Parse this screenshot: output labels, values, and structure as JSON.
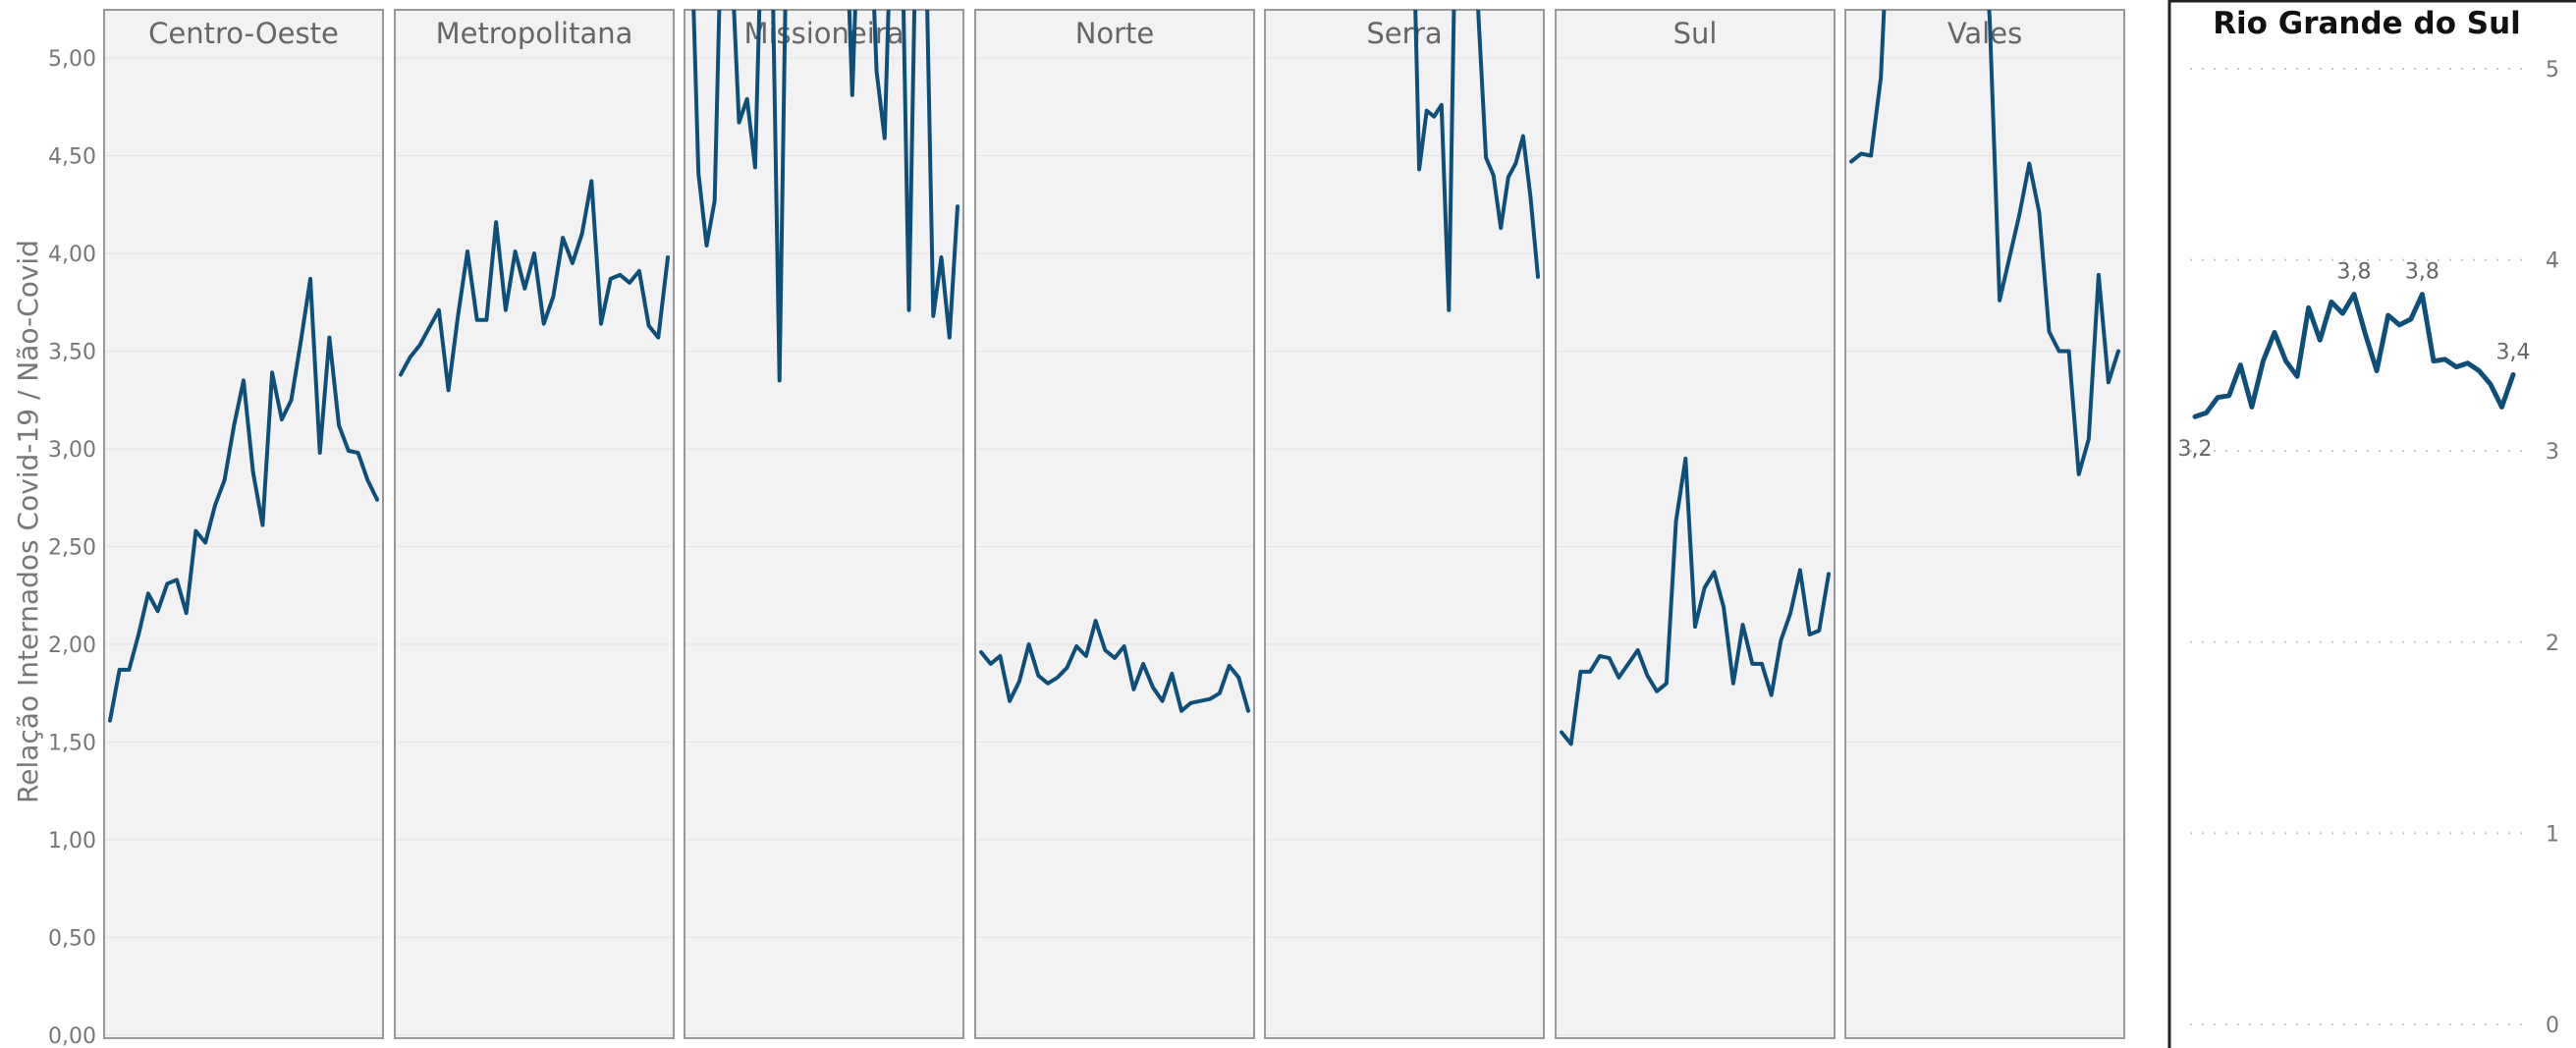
{
  "colors": {
    "line": "#0e4f79",
    "panel_bg": "#f2f2f2",
    "panel_border": "#999999",
    "grid": "#e3e3e3"
  },
  "chart_data": [
    {
      "type": "line",
      "title": "",
      "xlabel": "",
      "ylabel": "Relação Internados Covid-19 / Não-Covid",
      "ylim": [
        0,
        5
      ],
      "y_ticks": [
        "0,00",
        "0,50",
        "1,00",
        "1,50",
        "2,00",
        "2,50",
        "3,00",
        "3,50",
        "4,00",
        "4,50",
        "5,00"
      ],
      "facets": [
        {
          "name": "Centro-Oeste",
          "values": [
            1.61,
            1.87,
            1.87,
            2.05,
            2.26,
            2.17,
            2.31,
            2.33,
            2.16,
            2.58,
            2.52,
            2.71,
            2.84,
            3.12,
            3.35,
            2.88,
            2.61,
            3.39,
            3.15,
            3.25,
            3.55,
            3.87,
            2.98,
            3.57,
            3.12,
            2.99,
            2.98,
            2.84,
            2.74
          ]
        },
        {
          "name": "Metropolitana",
          "values": [
            3.38,
            3.47,
            3.53,
            3.62,
            3.71,
            3.3,
            3.68,
            4.01,
            3.66,
            3.66,
            4.16,
            3.71,
            4.01,
            3.82,
            4.0,
            3.64,
            3.78,
            4.08,
            3.95,
            4.1,
            4.37,
            3.64,
            3.87,
            3.89,
            3.85,
            3.91,
            3.63,
            3.57,
            3.98
          ]
        },
        {
          "name": "Missioneira",
          "values": [
            5.8,
            4.41,
            4.04,
            4.27,
            6.0,
            5.6,
            4.67,
            4.79,
            4.44,
            6.0,
            5.8,
            3.35,
            6.0,
            6.0,
            6.0,
            6.0,
            6.0,
            6.0,
            6.0,
            6.0,
            4.81,
            6.0,
            6.0,
            4.93,
            4.59,
            6.0,
            6.0,
            3.71,
            6.0,
            5.8,
            3.68,
            3.98,
            3.57,
            4.24
          ]
        },
        {
          "name": "Norte",
          "values": [
            1.96,
            1.9,
            1.94,
            1.71,
            1.81,
            2.0,
            1.84,
            1.8,
            1.83,
            1.88,
            1.99,
            1.94,
            2.12,
            1.97,
            1.93,
            1.99,
            1.77,
            1.9,
            1.78,
            1.71,
            1.85,
            1.66,
            1.7,
            1.71,
            1.72,
            1.75,
            1.89,
            1.83,
            1.66
          ]
        },
        {
          "name": "Serra",
          "values": [
            null,
            null,
            null,
            null,
            null,
            null,
            null,
            null,
            null,
            null,
            null,
            null,
            null,
            null,
            null,
            null,
            null,
            null,
            null,
            6.0,
            4.43,
            4.73,
            4.7,
            4.76,
            3.71,
            6.0,
            6.0,
            6.0,
            5.2,
            4.49,
            4.4,
            4.13,
            4.39,
            4.46,
            4.6,
            4.29,
            3.88
          ]
        },
        {
          "name": "Sul",
          "values": [
            1.55,
            1.49,
            1.86,
            1.86,
            1.94,
            1.93,
            1.83,
            1.9,
            1.97,
            1.84,
            1.76,
            1.8,
            2.63,
            2.95,
            2.09,
            2.29,
            2.37,
            2.19,
            1.8,
            2.1,
            1.9,
            1.9,
            1.74,
            2.02,
            2.16,
            2.38,
            2.05,
            2.07,
            2.36
          ]
        },
        {
          "name": "Vales",
          "values": [
            4.47,
            4.51,
            4.5,
            4.9,
            6.0,
            6.0,
            6.0,
            6.0,
            6.0,
            6.0,
            6.0,
            6.0,
            6.0,
            6.0,
            5.2,
            3.76,
            3.98,
            4.2,
            4.46,
            4.21,
            3.6,
            3.5,
            3.5,
            2.87,
            3.05,
            3.89,
            3.34,
            3.5
          ]
        }
      ]
    },
    {
      "type": "line",
      "title": "Rio Grande do Sul",
      "ylim": [
        0,
        5
      ],
      "y_ticks": [
        "0",
        "1",
        "2",
        "3",
        "4",
        "5"
      ],
      "values": [
        3.18,
        3.2,
        3.28,
        3.29,
        3.45,
        3.23,
        3.47,
        3.62,
        3.47,
        3.39,
        3.75,
        3.58,
        3.78,
        3.72,
        3.82,
        3.61,
        3.42,
        3.71,
        3.66,
        3.69,
        3.82,
        3.47,
        3.48,
        3.44,
        3.46,
        3.42,
        3.35,
        3.23,
        3.4
      ],
      "point_labels": [
        {
          "index": 0,
          "text": "3,2",
          "position": "below"
        },
        {
          "index": 14,
          "text": "3,8",
          "position": "above"
        },
        {
          "index": 20,
          "text": "3,8",
          "position": "above"
        },
        {
          "index": 28,
          "text": "3,4",
          "position": "above"
        }
      ]
    }
  ]
}
